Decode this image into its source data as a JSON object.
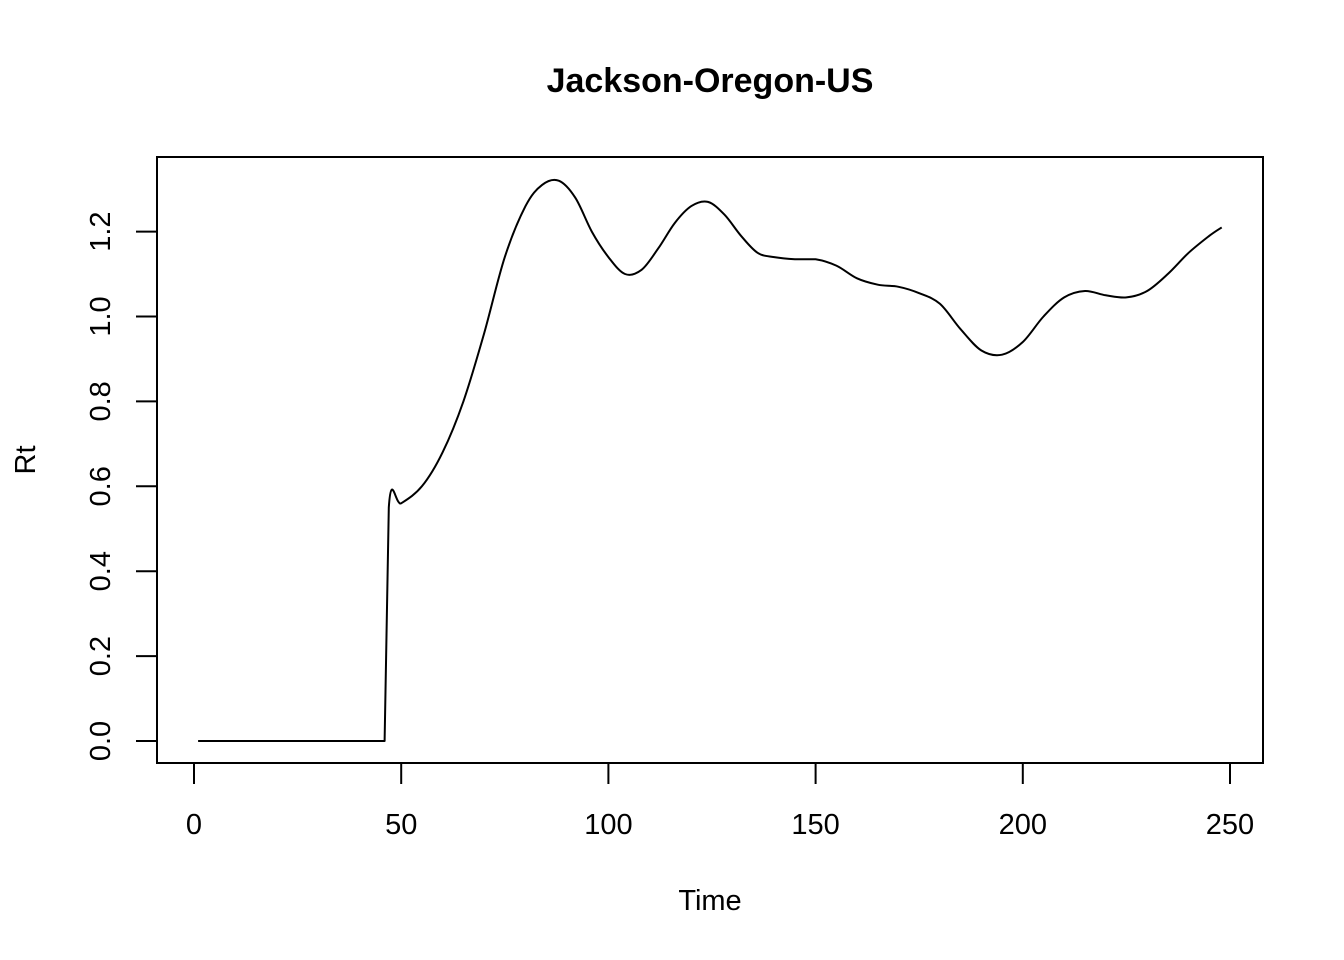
{
  "chart_data": {
    "type": "line",
    "title": "Jackson-Oregon-US",
    "xlabel": "Time",
    "ylabel": "Rt",
    "xlim": [
      0,
      250
    ],
    "ylim": [
      0,
      1.3
    ],
    "x_ticks": [
      0,
      50,
      100,
      150,
      200,
      250
    ],
    "y_ticks": [
      0.0,
      0.2,
      0.4,
      0.6,
      0.8,
      1.0,
      1.2
    ],
    "x_tick_labels": [
      "0",
      "50",
      "100",
      "150",
      "200",
      "250"
    ],
    "y_tick_labels": [
      "0.0",
      "0.2",
      "0.4",
      "0.6",
      "0.8",
      "1.0",
      "1.2"
    ],
    "grid": false,
    "legend": "none",
    "line_color": "#000000",
    "series": [
      {
        "x": [
          1,
          10,
          20,
          30,
          40,
          46,
          47,
          50,
          55,
          60,
          65,
          70,
          75,
          80,
          84,
          88,
          92,
          96,
          100,
          104,
          108,
          112,
          116,
          120,
          124,
          128,
          132,
          136,
          140,
          145,
          150,
          155,
          160,
          165,
          170,
          175,
          180,
          185,
          190,
          195,
          200,
          205,
          210,
          215,
          220,
          225,
          230,
          235,
          240,
          245,
          248
        ],
        "y": [
          0.0,
          0.0,
          0.0,
          0.0,
          0.0,
          0.0,
          0.55,
          0.56,
          0.6,
          0.68,
          0.8,
          0.96,
          1.14,
          1.26,
          1.31,
          1.32,
          1.28,
          1.2,
          1.14,
          1.1,
          1.11,
          1.16,
          1.22,
          1.26,
          1.27,
          1.24,
          1.19,
          1.15,
          1.14,
          1.135,
          1.135,
          1.12,
          1.09,
          1.075,
          1.07,
          1.055,
          1.03,
          0.97,
          0.92,
          0.91,
          0.94,
          1.0,
          1.045,
          1.06,
          1.05,
          1.045,
          1.06,
          1.1,
          1.15,
          1.19,
          1.21
        ]
      }
    ]
  }
}
